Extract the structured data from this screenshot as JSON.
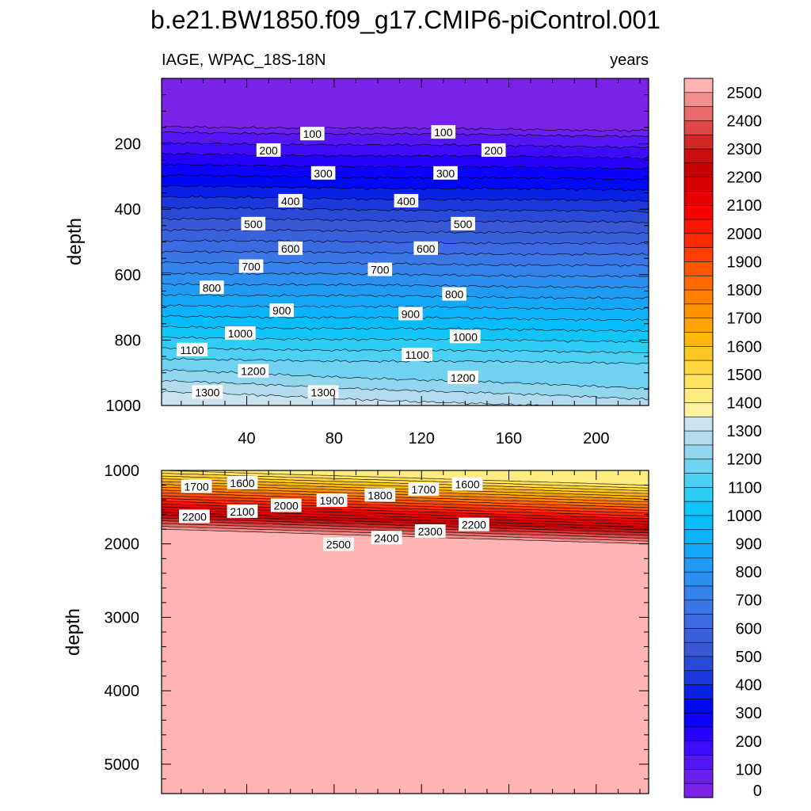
{
  "title": "b.e21.BW1850.f09_g17.CMIP6-piControl.001",
  "subtitle_left": "IAGE, WPAC_18S-18N",
  "subtitle_right": "years",
  "chart_data": [
    {
      "type": "contour",
      "panel": "upper",
      "variable": "IAGE",
      "region": "WPAC_18S-18N",
      "units": "years",
      "xlabel": "",
      "ylabel": "depth",
      "xlim": [
        1,
        224
      ],
      "ylim": [
        1000,
        0
      ],
      "x_ticks": [
        "40",
        "80",
        "120",
        "160",
        "200"
      ],
      "y_ticks": [
        "200",
        "400",
        "600",
        "800",
        "1000"
      ],
      "contour_interval": 50,
      "contour_labels": [
        {
          "text": "100",
          "x": 70,
          "depth": 170
        },
        {
          "text": "200",
          "x": 50,
          "depth": 220
        },
        {
          "text": "300",
          "x": 75,
          "depth": 290
        },
        {
          "text": "400",
          "x": 60,
          "depth": 375
        },
        {
          "text": "500",
          "x": 43,
          "depth": 445
        },
        {
          "text": "600",
          "x": 60,
          "depth": 520
        },
        {
          "text": "700",
          "x": 42,
          "depth": 575
        },
        {
          "text": "800",
          "x": 24,
          "depth": 640
        },
        {
          "text": "900",
          "x": 56,
          "depth": 710
        },
        {
          "text": "1000",
          "x": 37,
          "depth": 780
        },
        {
          "text": "1100",
          "x": 15,
          "depth": 830
        },
        {
          "text": "1200",
          "x": 43,
          "depth": 895
        },
        {
          "text": "1300",
          "x": 22,
          "depth": 960
        },
        {
          "text": "1300",
          "x": 75,
          "depth": 960
        },
        {
          "text": "100",
          "x": 130,
          "depth": 165
        },
        {
          "text": "200",
          "x": 153,
          "depth": 220
        },
        {
          "text": "300",
          "x": 131,
          "depth": 290
        },
        {
          "text": "400",
          "x": 113,
          "depth": 375
        },
        {
          "text": "500",
          "x": 139,
          "depth": 445
        },
        {
          "text": "600",
          "x": 122,
          "depth": 520
        },
        {
          "text": "700",
          "x": 101,
          "depth": 585
        },
        {
          "text": "800",
          "x": 135,
          "depth": 660
        },
        {
          "text": "900",
          "x": 115,
          "depth": 720
        },
        {
          "text": "1000",
          "x": 140,
          "depth": 790
        },
        {
          "text": "1100",
          "x": 118,
          "depth": 845
        },
        {
          "text": "1200",
          "x": 139,
          "depth": 915
        }
      ]
    },
    {
      "type": "contour",
      "panel": "lower",
      "variable": "IAGE",
      "region": "WPAC_18S-18N",
      "units": "years",
      "xlabel": "",
      "ylabel": "depth",
      "xlim": [
        1,
        224
      ],
      "ylim": [
        5400,
        1000
      ],
      "y_ticks": [
        "1000",
        "2000",
        "3000",
        "4000",
        "5000"
      ],
      "contour_interval": 50,
      "contour_labels": [
        {
          "text": "1700",
          "x": 17,
          "depth": 1220
        },
        {
          "text": "1600",
          "x": 38,
          "depth": 1170
        },
        {
          "text": "2200",
          "x": 16,
          "depth": 1630
        },
        {
          "text": "2100",
          "x": 38,
          "depth": 1560
        },
        {
          "text": "2000",
          "x": 58,
          "depth": 1480
        },
        {
          "text": "1900",
          "x": 79,
          "depth": 1410
        },
        {
          "text": "1800",
          "x": 101,
          "depth": 1340
        },
        {
          "text": "1700",
          "x": 121,
          "depth": 1260
        },
        {
          "text": "1600",
          "x": 141,
          "depth": 1190
        },
        {
          "text": "2500",
          "x": 82,
          "depth": 2010
        },
        {
          "text": "2400",
          "x": 104,
          "depth": 1920
        },
        {
          "text": "2300",
          "x": 124,
          "depth": 1830
        },
        {
          "text": "2200",
          "x": 144,
          "depth": 1740
        }
      ]
    }
  ],
  "colorbar": {
    "labels": [
      "2500",
      "2400",
      "2300",
      "2200",
      "2100",
      "2000",
      "1900",
      "1800",
      "1700",
      "1600",
      "1500",
      "1400",
      "1300",
      "1200",
      "1100",
      "1000",
      "900",
      "800",
      "700",
      "600",
      "500",
      "400",
      "300",
      "200",
      "100",
      "0"
    ],
    "min": 0,
    "max": 2550,
    "interval": 50
  }
}
